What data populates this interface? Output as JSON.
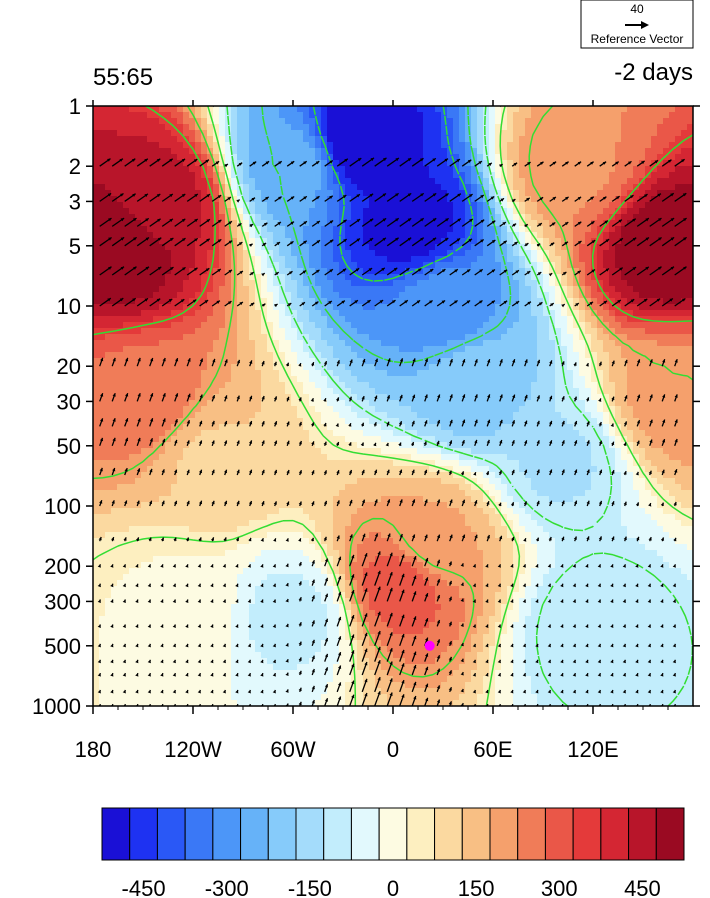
{
  "chart_data": {
    "type": "heatmap",
    "title_left": "55:65",
    "title_right": "-2 days",
    "x_ticks": [
      "180",
      "120W",
      "60W",
      "0",
      "60E",
      "120E"
    ],
    "x_tick_values": [
      -180,
      -120,
      -60,
      0,
      60,
      120
    ],
    "xlim": [
      -180,
      180
    ],
    "y_ticks": [
      "1",
      "2",
      "3",
      "5",
      "10",
      "20",
      "30",
      "50",
      "100",
      "200",
      "300",
      "500",
      "1000"
    ],
    "y_tick_values": [
      1,
      2,
      3,
      5,
      10,
      20,
      30,
      50,
      100,
      200,
      300,
      500,
      1000
    ],
    "ylim": [
      1,
      1000
    ],
    "y_scale": "log",
    "y_reversed": true,
    "reference_vector": {
      "value": "40",
      "label": "Reference Vector"
    },
    "colorbar": {
      "ticks": [
        "-450",
        "-300",
        "-150",
        "0",
        "150",
        "300",
        "450"
      ],
      "tick_values": [
        -450,
        -300,
        -150,
        0,
        150,
        300,
        450
      ],
      "levels": [
        -525,
        -475,
        -425,
        -375,
        -325,
        -275,
        -225,
        -175,
        -125,
        -75,
        -25,
        25,
        75,
        125,
        175,
        225,
        275,
        325,
        375,
        425,
        475,
        525
      ],
      "colors": [
        "#1a10d6",
        "#1e32f2",
        "#2a58f6",
        "#3a78f6",
        "#4c96f8",
        "#66b2f8",
        "#86cbfa",
        "#a4dcfb",
        "#c2edfc",
        "#e2f9fd",
        "#fdfbe2",
        "#fdefc0",
        "#fbd9a0",
        "#f8bf84",
        "#f5a06c",
        "#f07c58",
        "#ea5748",
        "#e43a3a",
        "#d42633",
        "#b8152a",
        "#9a0a22"
      ]
    },
    "field_features": [
      {
        "lon": -165,
        "p": 5,
        "value": 520
      },
      {
        "lon": -150,
        "p": 30,
        "value": 260
      },
      {
        "lon": -140,
        "p": 3,
        "value": 450
      },
      {
        "lon": -110,
        "p": 60,
        "value": 120
      },
      {
        "lon": -60,
        "p": 2,
        "value": -250
      },
      {
        "lon": -20,
        "p": 1.5,
        "value": -520
      },
      {
        "lon": 10,
        "p": 4,
        "value": -500
      },
      {
        "lon": 30,
        "p": 10,
        "value": -300
      },
      {
        "lon": 50,
        "p": 25,
        "value": -200
      },
      {
        "lon": 100,
        "p": 60,
        "value": -130
      },
      {
        "lon": 120,
        "p": 400,
        "value": -120
      },
      {
        "lon": -60,
        "p": 350,
        "value": -90
      },
      {
        "lon": -130,
        "p": 300,
        "value": 20
      },
      {
        "lon": 5,
        "p": 250,
        "value": 300
      },
      {
        "lon": 25,
        "p": 150,
        "value": 180
      },
      {
        "lon": 110,
        "p": 2,
        "value": 220
      },
      {
        "lon": 165,
        "p": 5,
        "value": 520
      },
      {
        "lon": 170,
        "p": 30,
        "value": 200
      }
    ],
    "marker": {
      "lon": 22,
      "p": 500,
      "color": "#ff00ff"
    },
    "contour_color": "#33dd33"
  }
}
